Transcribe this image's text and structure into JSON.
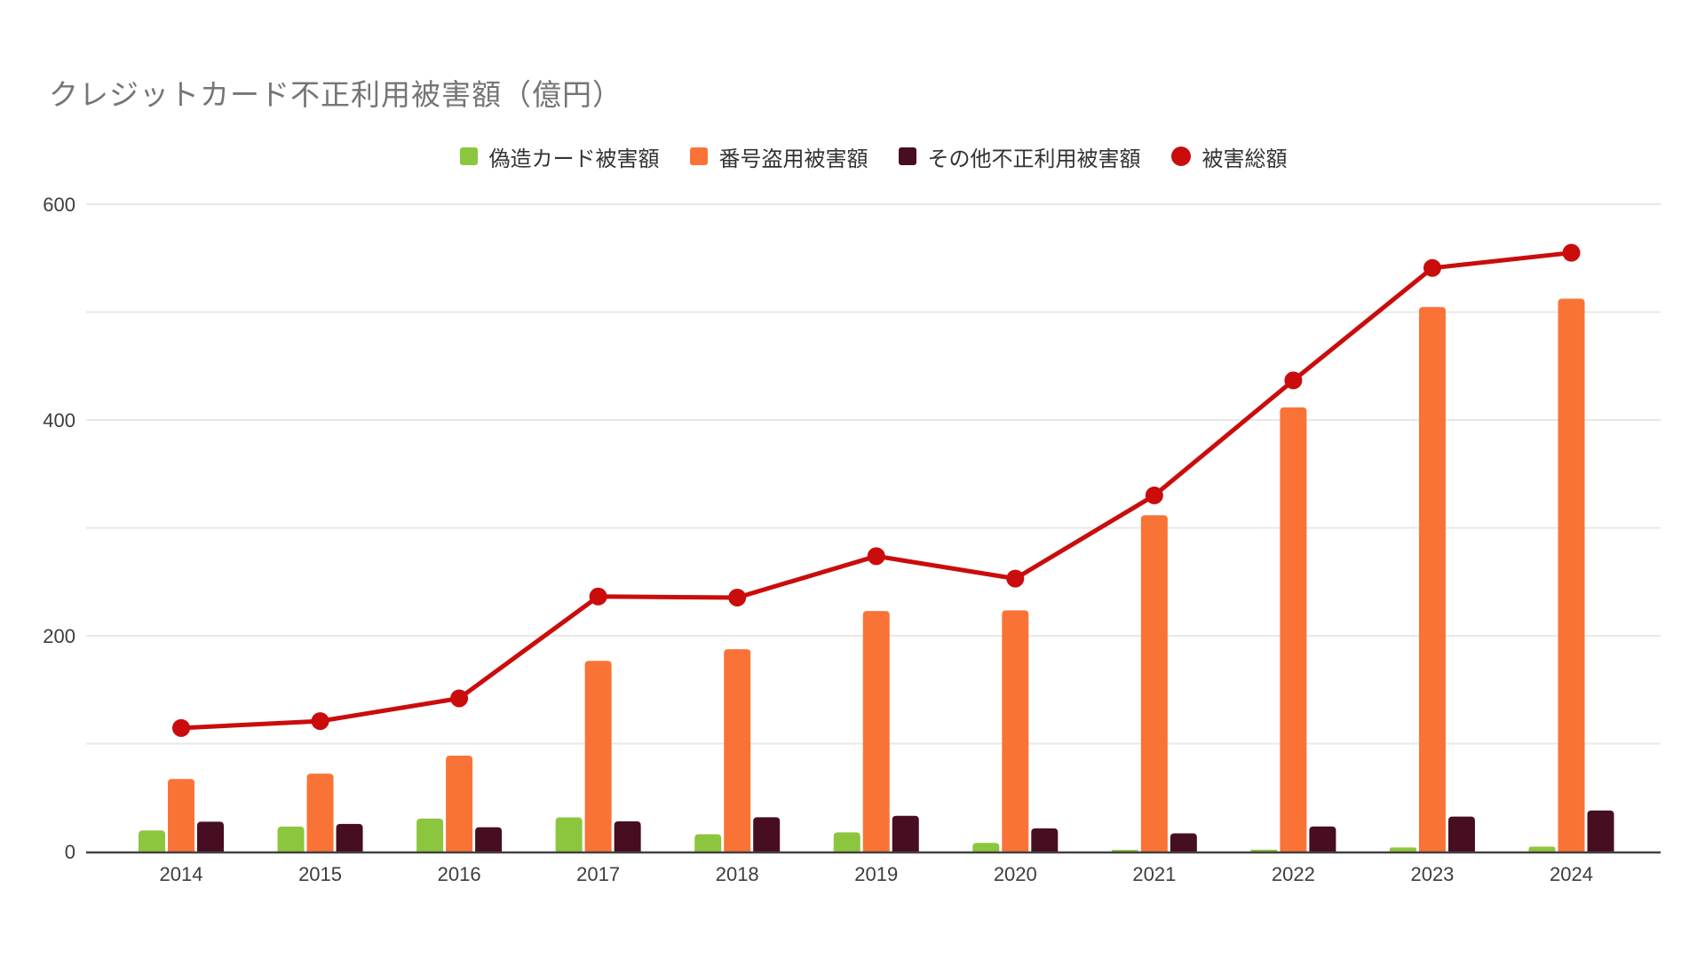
{
  "chart_data": {
    "type": "bar",
    "subtype": "grouped-bars-with-line-overlay",
    "title": "クレジットカード不正利用被害額（億円）",
    "units": "億円",
    "xlabel": "",
    "ylabel": "",
    "ylim": [
      0,
      600
    ],
    "yticks": [
      0,
      200,
      400,
      600
    ],
    "gridlines_every": 100,
    "grid": true,
    "legend_position": "top",
    "categories": [
      "2014",
      "2015",
      "2016",
      "2017",
      "2018",
      "2019",
      "2020",
      "2021",
      "2022",
      "2023",
      "2024"
    ],
    "series": [
      {
        "name": "偽造カード被害額",
        "kind": "bar",
        "color": "#8cc63e",
        "values": [
          19.5,
          23.1,
          30.6,
          31.7,
          16.0,
          17.8,
          8.0,
          1.5,
          1.7,
          3.8,
          4.5
        ]
      },
      {
        "name": "番号盗用被害額",
        "kind": "bar",
        "color": "#f97336",
        "values": [
          67.3,
          72.2,
          88.9,
          176.7,
          187.6,
          222.9,
          223.6,
          311.7,
          411.7,
          504.7,
          512.4
        ]
      },
      {
        "name": "その他不正利用被害額",
        "kind": "bar",
        "color": "#470d21",
        "values": [
          27.7,
          25.6,
          22.5,
          28.0,
          31.8,
          33.1,
          21.5,
          16.9,
          23.3,
          32.4,
          38.1
        ]
      },
      {
        "name": "被害総額",
        "kind": "line",
        "color": "#cb0c0c",
        "values": [
          114.5,
          120.9,
          142.0,
          236.4,
          235.4,
          273.8,
          253.0,
          330.1,
          436.7,
          540.9,
          555.0
        ]
      }
    ]
  },
  "legend": {
    "items": [
      {
        "label": "偽造カード被害額",
        "marker": "square",
        "color": "#8cc63e"
      },
      {
        "label": "番号盗用被害額",
        "marker": "square",
        "color": "#f97336"
      },
      {
        "label": "その他不正利用被害額",
        "marker": "square",
        "color": "#470d21"
      },
      {
        "label": "被害総額",
        "marker": "circle",
        "color": "#cb0c0c"
      }
    ]
  },
  "axes": {
    "y_tick_labels": [
      "0",
      "200",
      "400",
      "600"
    ],
    "x_tick_labels": [
      "2014",
      "2015",
      "2016",
      "2017",
      "2018",
      "2019",
      "2020",
      "2021",
      "2022",
      "2023",
      "2024"
    ]
  },
  "colors": {
    "title_text": "#757575",
    "axis_text": "#3d3d3d",
    "gridline": "#e8e8e8",
    "axis_line": "#424242",
    "background": "#ffffff"
  }
}
